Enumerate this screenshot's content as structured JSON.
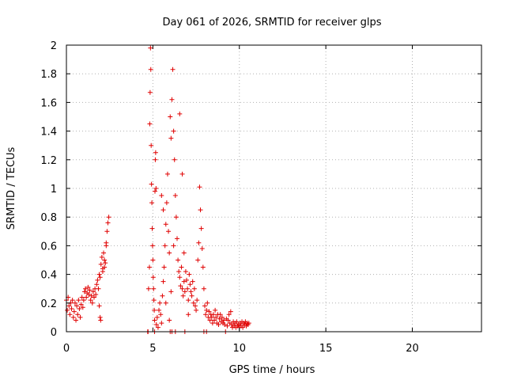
{
  "chart_data": {
    "type": "scatter",
    "title": "Day 061 of 2026, SRMTID for receiver glps",
    "xlabel": "GPS time / hours",
    "ylabel": "SRMTID / TECUs",
    "xlim": [
      0,
      24
    ],
    "ylim": [
      0,
      2
    ],
    "xticks": [
      0,
      5,
      10,
      15,
      20
    ],
    "yticks": [
      0,
      0.2,
      0.4,
      0.6,
      0.8,
      1,
      1.2,
      1.4,
      1.6,
      1.8,
      2
    ],
    "grid": true,
    "marker": "+",
    "series_color": "#e00000",
    "points": [
      [
        0.0,
        0.22
      ],
      [
        0.05,
        0.15
      ],
      [
        0.1,
        0.24
      ],
      [
        0.15,
        0.18
      ],
      [
        0.2,
        0.12
      ],
      [
        0.25,
        0.2
      ],
      [
        0.3,
        0.16
      ],
      [
        0.35,
        0.22
      ],
      [
        0.4,
        0.1
      ],
      [
        0.45,
        0.14
      ],
      [
        0.5,
        0.2
      ],
      [
        0.55,
        0.08
      ],
      [
        0.6,
        0.18
      ],
      [
        0.65,
        0.12
      ],
      [
        0.7,
        0.22
      ],
      [
        0.75,
        0.16
      ],
      [
        0.8,
        0.1
      ],
      [
        0.85,
        0.19
      ],
      [
        0.9,
        0.24
      ],
      [
        0.95,
        0.17
      ],
      [
        1.0,
        0.22
      ],
      [
        1.05,
        0.28
      ],
      [
        1.1,
        0.3
      ],
      [
        1.15,
        0.24
      ],
      [
        1.2,
        0.27
      ],
      [
        1.25,
        0.31
      ],
      [
        1.3,
        0.26
      ],
      [
        1.35,
        0.29
      ],
      [
        1.4,
        0.22
      ],
      [
        1.45,
        0.25
      ],
      [
        1.5,
        0.2
      ],
      [
        1.55,
        0.28
      ],
      [
        1.6,
        0.24
      ],
      [
        1.65,
        0.3
      ],
      [
        1.7,
        0.26
      ],
      [
        1.75,
        0.33
      ],
      [
        1.8,
        0.36
      ],
      [
        1.85,
        0.3
      ],
      [
        1.9,
        0.4
      ],
      [
        1.95,
        0.38
      ],
      [
        2.0,
        0.47
      ],
      [
        2.05,
        0.52
      ],
      [
        2.1,
        0.44
      ],
      [
        2.15,
        0.55
      ],
      [
        2.2,
        0.5
      ],
      [
        2.25,
        0.48
      ],
      [
        2.3,
        0.6
      ],
      [
        2.35,
        0.7
      ],
      [
        2.4,
        0.76
      ],
      [
        2.45,
        0.8
      ],
      [
        2.3,
        0.62
      ],
      [
        2.2,
        0.45
      ],
      [
        2.1,
        0.42
      ],
      [
        1.9,
        0.18
      ],
      [
        1.95,
        0.1
      ],
      [
        1.98,
        0.08
      ],
      [
        4.7,
        0.0
      ],
      [
        4.75,
        0.3
      ],
      [
        4.8,
        0.45
      ],
      [
        4.82,
        1.45
      ],
      [
        4.84,
        1.67
      ],
      [
        4.86,
        1.98
      ],
      [
        4.88,
        1.83
      ],
      [
        4.9,
        1.3
      ],
      [
        4.92,
        1.03
      ],
      [
        4.94,
        0.9
      ],
      [
        4.96,
        0.72
      ],
      [
        4.98,
        0.6
      ],
      [
        5.0,
        0.5
      ],
      [
        5.02,
        0.38
      ],
      [
        5.04,
        0.3
      ],
      [
        5.06,
        0.22
      ],
      [
        5.08,
        0.15
      ],
      [
        5.1,
        0.08
      ],
      [
        5.12,
        0.98
      ],
      [
        5.14,
        1.2
      ],
      [
        5.16,
        1.25
      ],
      [
        5.18,
        1.0
      ],
      [
        5.2,
        0.05
      ],
      [
        5.25,
        0.1
      ],
      [
        5.3,
        0.03
      ],
      [
        5.35,
        0.15
      ],
      [
        5.4,
        0.2
      ],
      [
        5.45,
        0.12
      ],
      [
        5.5,
        0.06
      ],
      [
        5.55,
        0.25
      ],
      [
        5.6,
        0.35
      ],
      [
        5.65,
        0.45
      ],
      [
        5.7,
        0.6
      ],
      [
        5.75,
        0.75
      ],
      [
        5.8,
        0.9
      ],
      [
        5.85,
        1.1
      ],
      [
        5.9,
        0.7
      ],
      [
        5.95,
        0.55
      ],
      [
        6.0,
        1.5
      ],
      [
        6.05,
        1.35
      ],
      [
        6.1,
        1.62
      ],
      [
        6.15,
        1.83
      ],
      [
        6.2,
        1.4
      ],
      [
        6.25,
        1.2
      ],
      [
        6.3,
        0.95
      ],
      [
        6.35,
        0.8
      ],
      [
        6.4,
        0.65
      ],
      [
        6.45,
        0.5
      ],
      [
        6.5,
        0.42
      ],
      [
        6.55,
        0.38
      ],
      [
        6.6,
        0.32
      ],
      [
        6.65,
        0.45
      ],
      [
        6.7,
        0.3
      ],
      [
        6.75,
        0.25
      ],
      [
        6.8,
        0.35
      ],
      [
        6.85,
        0.28
      ],
      [
        6.9,
        0.42
      ],
      [
        6.95,
        0.36
      ],
      [
        7.0,
        0.3
      ],
      [
        7.05,
        0.22
      ],
      [
        7.1,
        0.4
      ],
      [
        7.15,
        0.33
      ],
      [
        7.2,
        0.28
      ],
      [
        7.25,
        0.25
      ],
      [
        7.3,
        0.35
      ],
      [
        7.35,
        0.2
      ],
      [
        7.4,
        0.3
      ],
      [
        7.45,
        0.18
      ],
      [
        7.5,
        0.15
      ],
      [
        7.55,
        0.22
      ],
      [
        7.6,
        0.5
      ],
      [
        7.65,
        0.62
      ],
      [
        7.7,
        1.01
      ],
      [
        7.75,
        0.85
      ],
      [
        7.8,
        0.72
      ],
      [
        7.85,
        0.58
      ],
      [
        7.9,
        0.45
      ],
      [
        7.95,
        0.3
      ],
      [
        8.0,
        0.18
      ],
      [
        8.05,
        0.12
      ],
      [
        8.1,
        0.15
      ],
      [
        8.15,
        0.2
      ],
      [
        8.2,
        0.1
      ],
      [
        8.25,
        0.14
      ],
      [
        8.3,
        0.08
      ],
      [
        8.35,
        0.12
      ],
      [
        8.4,
        0.1
      ],
      [
        8.45,
        0.06
      ],
      [
        8.5,
        0.12
      ],
      [
        8.55,
        0.08
      ],
      [
        8.6,
        0.15
      ],
      [
        8.65,
        0.1
      ],
      [
        8.7,
        0.06
      ],
      [
        8.75,
        0.12
      ],
      [
        8.8,
        0.05
      ],
      [
        8.85,
        0.09
      ],
      [
        8.9,
        0.12
      ],
      [
        8.95,
        0.07
      ],
      [
        9.0,
        0.1
      ],
      [
        9.05,
        0.06
      ],
      [
        9.1,
        0.08
      ],
      [
        9.15,
        0.05
      ],
      [
        9.2,
        0.0
      ],
      [
        9.25,
        0.09
      ],
      [
        9.3,
        0.04
      ],
      [
        9.35,
        0.08
      ],
      [
        9.4,
        0.12
      ],
      [
        9.45,
        0.06
      ],
      [
        9.5,
        0.14
      ],
      [
        9.55,
        0.05
      ],
      [
        9.6,
        0.03
      ],
      [
        9.65,
        0.07
      ],
      [
        9.7,
        0.04
      ],
      [
        9.75,
        0.06
      ],
      [
        9.8,
        0.03
      ],
      [
        9.85,
        0.07
      ],
      [
        9.9,
        0.04
      ],
      [
        9.95,
        0.05
      ],
      [
        10.0,
        0.03
      ],
      [
        10.05,
        0.06
      ],
      [
        10.1,
        0.04
      ],
      [
        10.15,
        0.07
      ],
      [
        10.2,
        0.03
      ],
      [
        10.25,
        0.06
      ],
      [
        10.3,
        0.05
      ],
      [
        10.35,
        0.07
      ],
      [
        10.4,
        0.04
      ],
      [
        10.45,
        0.06
      ],
      [
        10.5,
        0.05
      ],
      [
        10.55,
        0.06
      ],
      [
        5.5,
        0.95
      ],
      [
        5.6,
        0.85
      ],
      [
        6.05,
        0.28
      ],
      [
        6.55,
        1.52
      ],
      [
        6.7,
        1.1
      ],
      [
        6.2,
        0.6
      ],
      [
        6.8,
        0.55
      ],
      [
        7.05,
        0.12
      ],
      [
        5.75,
        0.2
      ],
      [
        5.95,
        0.08
      ],
      [
        6.1,
        0.0
      ],
      [
        6.3,
        0.0
      ],
      [
        6.85,
        0.0
      ],
      [
        7.95,
        0.0
      ],
      [
        8.1,
        0.0
      ],
      [
        5.1,
        0.0
      ],
      [
        4.72,
        0.0
      ],
      [
        6.0,
        0.0
      ]
    ]
  }
}
